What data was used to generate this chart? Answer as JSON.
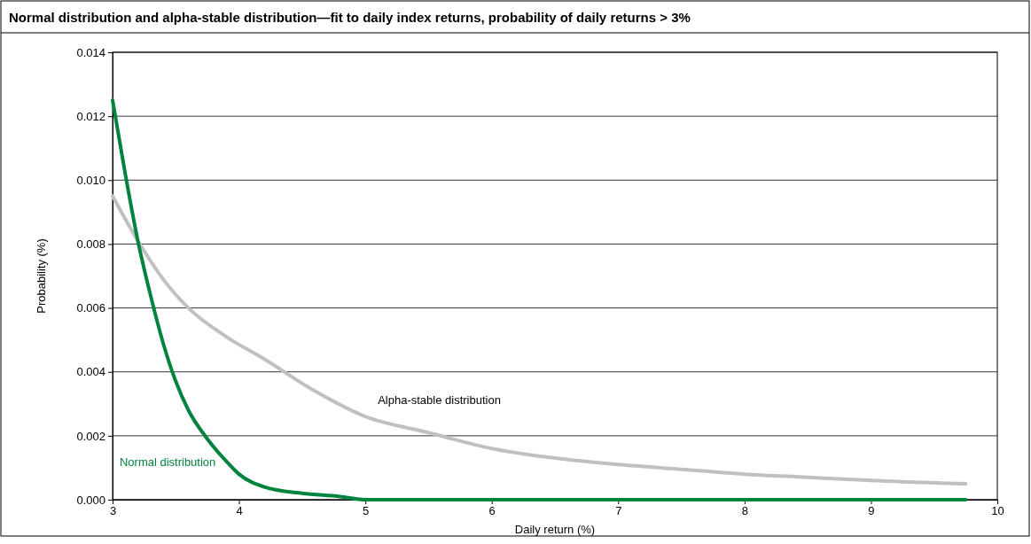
{
  "chart_data": {
    "type": "line",
    "title": "Normal distribution and alpha-stable distribution—fit to daily index returns, probability of daily returns > 3%",
    "xlabel": "Daily return (%)",
    "ylabel": "Probability (%)",
    "xlim": [
      3,
      10
    ],
    "xticks": [
      3,
      4,
      5,
      6,
      7,
      8,
      9,
      10
    ],
    "ylim": [
      0,
      0.014
    ],
    "yticks": [
      {
        "value": 0,
        "label": "0.000"
      },
      {
        "value": 0.002,
        "label": "0.002"
      },
      {
        "value": 0.004,
        "label": "0.004"
      },
      {
        "value": 0.006,
        "label": "0.006"
      },
      {
        "value": 0.008,
        "label": "0.008"
      },
      {
        "value": 0.01,
        "label": "0.010"
      },
      {
        "value": 0.012,
        "label": "0.012"
      },
      {
        "value": 0.014,
        "label": "0.014"
      }
    ],
    "grid": "y",
    "marker": "none",
    "line_style": "solid",
    "series": [
      {
        "name": "Alpha-stable distribution",
        "color": "#c0c0c0",
        "x": [
          3,
          3.2,
          3.4,
          3.6,
          3.9,
          4.2,
          4.6,
          5,
          5.5,
          6,
          6.5,
          7,
          7.5,
          8,
          8.5,
          9,
          9.75
        ],
        "values": [
          0.0095,
          0.0081,
          0.0069,
          0.006,
          0.0051,
          0.0044,
          0.0034,
          0.0026,
          0.0021,
          0.0016,
          0.0013,
          0.0011,
          0.00095,
          0.0008,
          0.0007,
          0.0006,
          0.0005
        ]
      },
      {
        "name": "Normal distribution",
        "color": "#00843d",
        "x": [
          3,
          3.1,
          3.2,
          3.3,
          3.4,
          3.5,
          3.6,
          3.75,
          3.9,
          4,
          4.2,
          4.5,
          4.8,
          5,
          5.5,
          6,
          7,
          8,
          9,
          9.75
        ],
        "values": [
          0.0125,
          0.0102,
          0.0081,
          0.0064,
          0.0049,
          0.0037,
          0.0028,
          0.0019,
          0.0012,
          0.0008,
          0.0004,
          0.0002,
          0.0001,
          0,
          0,
          0,
          0,
          0,
          0,
          0
        ]
      }
    ]
  }
}
